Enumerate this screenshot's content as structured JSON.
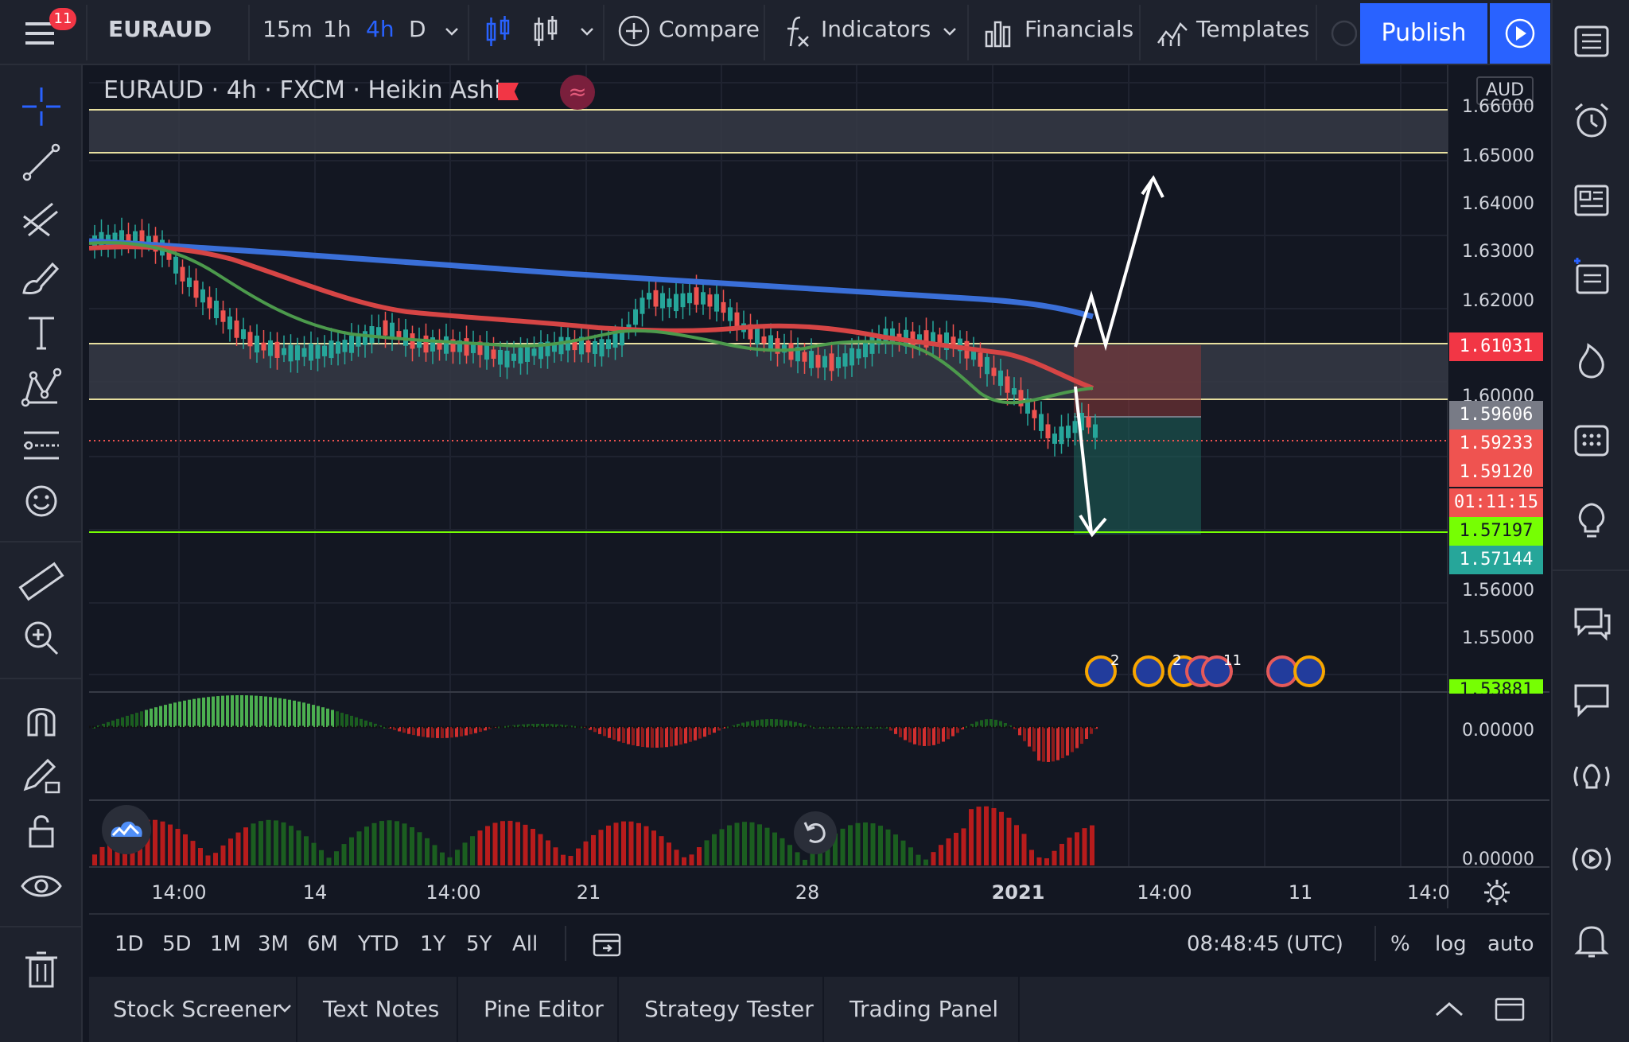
{
  "topbar": {
    "notification_count": "11",
    "symbol": "EURAUD",
    "intervals": [
      "15m",
      "1h",
      "4h",
      "D"
    ],
    "active_interval": "4h",
    "compare_label": "Compare",
    "indicators_label": "Indicators",
    "financials_label": "Financials",
    "templates_label": "Templates",
    "publish_label": "Publish"
  },
  "legend": {
    "title": "EURAUD · 4h · FXCM · Heikin Ashi"
  },
  "price_axis": {
    "currency": "AUD",
    "ticks": [
      "1.66000",
      "1.65000",
      "1.64000",
      "1.63000",
      "1.62000",
      "1.60000",
      "1.56000",
      "1.55000"
    ],
    "labels": [
      {
        "value": "1.61031",
        "color": "#f23645"
      },
      {
        "value": "1.59606",
        "color": "#787b86"
      },
      {
        "value": "1.59233",
        "color": "#ef5350"
      },
      {
        "value": "1.59120",
        "color": "#ef5350"
      },
      {
        "value": "01:11:15",
        "color": "#ef5350"
      },
      {
        "value": "1.57197",
        "color": "#76ff03"
      },
      {
        "value": "1.57144",
        "color": "#26a69a"
      },
      {
        "value": "1.53881",
        "color": "#76ff03"
      }
    ],
    "osc_ticks": [
      "0.00000",
      "0.00000"
    ]
  },
  "time_axis": {
    "ticks": [
      "14:00",
      "14",
      "14:00",
      "21",
      "28",
      "2021",
      "14:00",
      "11",
      "14:0"
    ]
  },
  "event_badges": [
    "2",
    "2",
    "11"
  ],
  "range_bar": {
    "ranges": [
      "1D",
      "5D",
      "1M",
      "3M",
      "6M",
      "YTD",
      "1Y",
      "5Y",
      "All"
    ],
    "clock": "08:48:45 (UTC)",
    "percent_label": "%",
    "log_label": "log",
    "auto_label": "auto"
  },
  "bottom_tabs": [
    "Stock Screener",
    "Text Notes",
    "Pine Editor",
    "Strategy Tester",
    "Trading Panel"
  ],
  "colors": {
    "background": "#131722",
    "panel": "#1e222d",
    "accent": "#2962ff",
    "up": "#26a69a",
    "down": "#ef5350",
    "ma_blue": "#3a6fd8",
    "ma_red": "#d64545",
    "ma_green": "#4c9a4c"
  }
}
